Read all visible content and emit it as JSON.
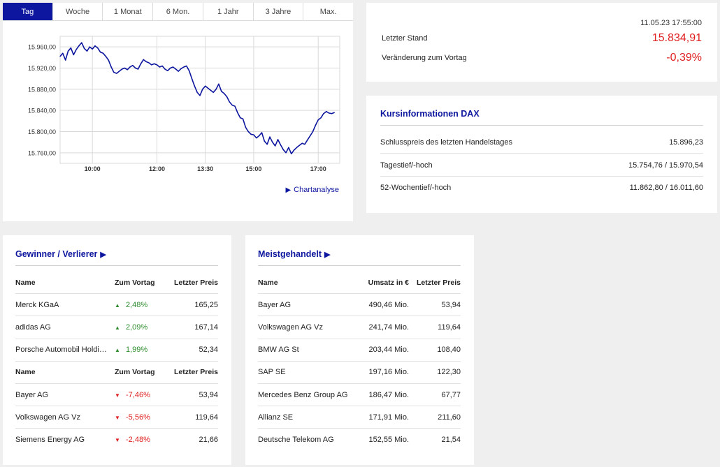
{
  "chart": {
    "tabs": [
      "Tag",
      "Woche",
      "1 Monat",
      "6 Mon.",
      "1 Jahr",
      "3 Jahre",
      "Max."
    ],
    "active_tab": "Tag",
    "link_label": "Chartanalyse",
    "colors": {
      "line": "#0d169e",
      "grid": "#d9d9d9",
      "accent": "#0d169e"
    }
  },
  "chart_data": {
    "type": "line",
    "title": "",
    "xlabel": "",
    "ylabel": "",
    "x_ticks": [
      "10:00",
      "12:00",
      "13:30",
      "15:00",
      "17:00"
    ],
    "y_ticks": [
      "15.960,00",
      "15.920,00",
      "15.880,00",
      "15.840,00",
      "15.800,00",
      "15.760,00"
    ],
    "ylim": [
      15740,
      15980
    ],
    "xlim": [
      "09:00",
      "17:40"
    ],
    "grid": true,
    "series": [
      {
        "x": [
          "09:00",
          "09:05",
          "09:10",
          "09:15",
          "09:20",
          "09:25",
          "09:30",
          "09:35",
          "09:40",
          "09:45",
          "09:50",
          "09:55",
          "10:00",
          "10:05",
          "10:10",
          "10:15",
          "10:20",
          "10:25",
          "10:30",
          "10:35",
          "10:40",
          "10:45",
          "10:50",
          "10:55",
          "11:00",
          "11:05",
          "11:10",
          "11:15",
          "11:20",
          "11:25",
          "11:30",
          "11:35",
          "11:40",
          "11:45",
          "11:50",
          "11:55",
          "12:00",
          "12:05",
          "12:10",
          "12:15",
          "12:20",
          "12:25",
          "12:30",
          "12:35",
          "12:40",
          "12:45",
          "12:50",
          "12:55",
          "13:00",
          "13:05",
          "13:10",
          "13:15",
          "13:20",
          "13:25",
          "13:30",
          "13:35",
          "13:40",
          "13:45",
          "13:50",
          "13:55",
          "14:00",
          "14:05",
          "14:10",
          "14:15",
          "14:20",
          "14:25",
          "14:30",
          "14:35",
          "14:40",
          "14:45",
          "14:50",
          "14:55",
          "15:00",
          "15:05",
          "15:10",
          "15:15",
          "15:20",
          "15:25",
          "15:30",
          "15:35",
          "15:40",
          "15:45",
          "15:50",
          "15:55",
          "16:00",
          "16:05",
          "16:10",
          "16:15",
          "16:20",
          "16:25",
          "16:30",
          "16:35",
          "16:40",
          "16:45",
          "16:50",
          "16:55",
          "17:00",
          "17:05",
          "17:10",
          "17:15",
          "17:20",
          "17:25",
          "17:30"
        ],
        "values": [
          15942,
          15948,
          15935,
          15952,
          15958,
          15945,
          15955,
          15962,
          15968,
          15957,
          15952,
          15960,
          15956,
          15962,
          15958,
          15950,
          15948,
          15942,
          15935,
          15922,
          15912,
          15910,
          15914,
          15918,
          15920,
          15917,
          15922,
          15925,
          15920,
          15918,
          15928,
          15936,
          15932,
          15930,
          15926,
          15928,
          15926,
          15922,
          15924,
          15918,
          15915,
          15920,
          15922,
          15918,
          15914,
          15919,
          15922,
          15924,
          15915,
          15900,
          15886,
          15874,
          15868,
          15880,
          15886,
          15882,
          15878,
          15874,
          15880,
          15890,
          15876,
          15872,
          15866,
          15856,
          15850,
          15848,
          15836,
          15826,
          15824,
          15808,
          15800,
          15795,
          15794,
          15788,
          15792,
          15798,
          15782,
          15776,
          15790,
          15780,
          15773,
          15785,
          15775,
          15766,
          15760,
          15770,
          15758,
          15765,
          15770,
          15774,
          15778,
          15776,
          15784,
          15792,
          15800,
          15812,
          15822,
          15826,
          15834,
          15838,
          15835,
          15834,
          15836
        ]
      }
    ]
  },
  "quote": {
    "timestamp": "11.05.23 17:55:00",
    "last_label": "Letzter Stand",
    "last_value": "15.834,91",
    "change_label": "Veränderung zum Vortag",
    "change_value": "-0,39%"
  },
  "info": {
    "title": "Kursinformationen DAX",
    "rows": [
      {
        "label": "Schlusspreis des letzten Handelstages",
        "value": "15.896,23"
      },
      {
        "label": "Tagestief/-hoch",
        "value": "15.754,76 / 15.970,54"
      },
      {
        "label": "52-Wochentief/-hoch",
        "value": "11.862,80 / 16.011,60"
      }
    ]
  },
  "gainers_losers": {
    "title": "Gewinner / Verlierer",
    "header": {
      "name": "Name",
      "change": "Zum Vortag",
      "price": "Letzter Preis"
    },
    "gainers": [
      {
        "name": "Merck KGaA",
        "change": "2,48%",
        "price": "165,25"
      },
      {
        "name": "adidas AG",
        "change": "2,09%",
        "price": "167,14"
      },
      {
        "name": "Porsche Automobil Holding SE",
        "change": "1,99%",
        "price": "52,34"
      }
    ],
    "losers": [
      {
        "name": "Bayer AG",
        "change": "-7,46%",
        "price": "53,94"
      },
      {
        "name": "Volkswagen AG Vz",
        "change": "-5,56%",
        "price": "119,64"
      },
      {
        "name": "Siemens Energy AG",
        "change": "-2,48%",
        "price": "21,66"
      }
    ],
    "icons": {
      "up": "triangle-up-icon",
      "down": "triangle-down-icon"
    }
  },
  "most_traded": {
    "title": "Meistgehandelt",
    "header": {
      "name": "Name",
      "volume": "Umsatz in €",
      "price": "Letzter Preis"
    },
    "rows": [
      {
        "name": "Bayer AG",
        "volume": "490,46 Mio.",
        "price": "53,94"
      },
      {
        "name": "Volkswagen AG Vz",
        "volume": "241,74 Mio.",
        "price": "119,64"
      },
      {
        "name": "BMW AG St",
        "volume": "203,44 Mio.",
        "price": "108,40"
      },
      {
        "name": "SAP SE",
        "volume": "197,16 Mio.",
        "price": "122,30"
      },
      {
        "name": "Mercedes Benz Group AG",
        "volume": "186,47 Mio.",
        "price": "67,77"
      },
      {
        "name": "Allianz SE",
        "volume": "171,91 Mio.",
        "price": "211,60"
      },
      {
        "name": "Deutsche Telekom AG",
        "volume": "152,55 Mio.",
        "price": "21,54"
      }
    ]
  }
}
